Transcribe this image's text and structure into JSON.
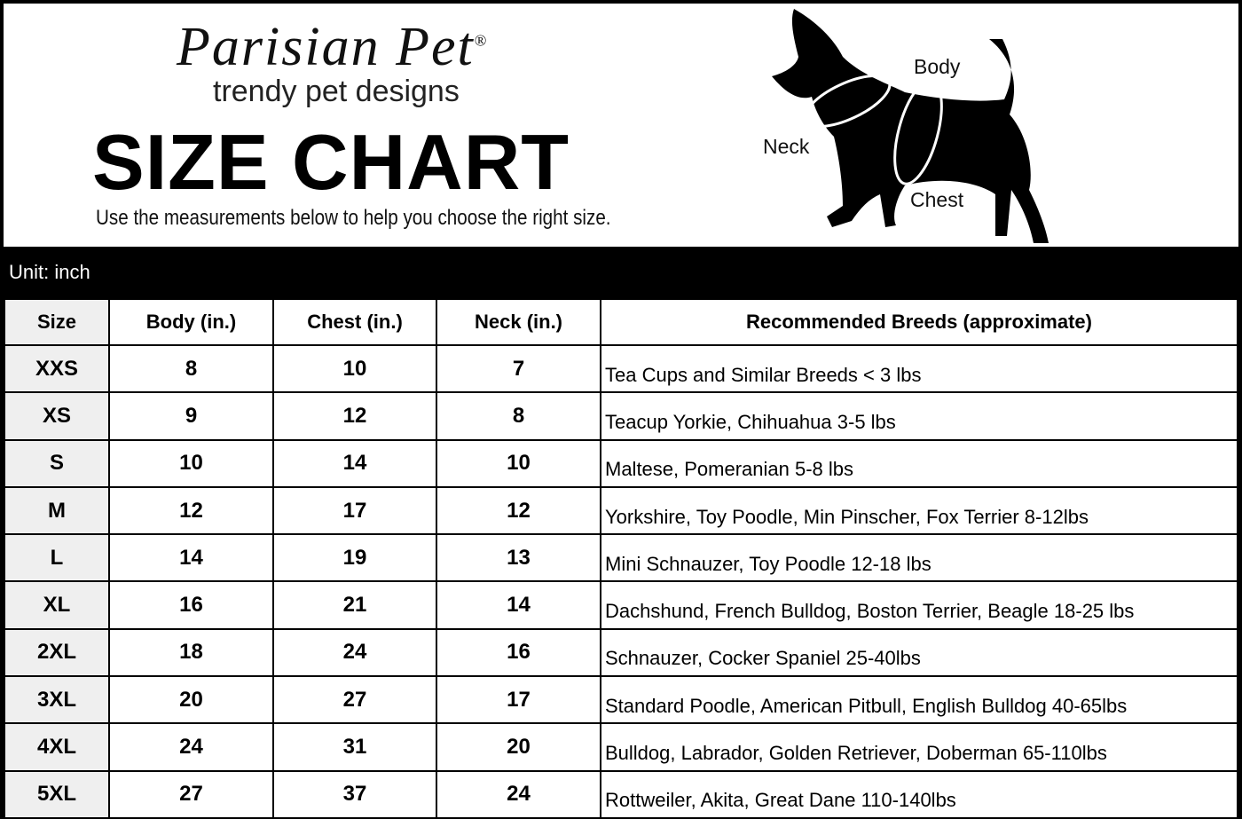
{
  "header": {
    "brand": "Parisian Pet",
    "registered": "®",
    "tagline": "trendy pet designs",
    "title": "SIZE CHART",
    "subtitle": "Use the measurements below to help you choose the right size."
  },
  "diagram": {
    "labels": {
      "body": "Body",
      "neck": "Neck",
      "chest": "Chest"
    },
    "icon": "dog-silhouette"
  },
  "unit": "Unit: inch",
  "table": {
    "headers": [
      "Size",
      "Body (in.)",
      "Chest (in.)",
      "Neck (in.)",
      "Recommended Breeds (approximate)"
    ],
    "rows": [
      [
        "XXS",
        "8",
        "10",
        "7",
        "Tea Cups and Similar Breeds < 3 lbs"
      ],
      [
        "XS",
        "9",
        "12",
        "8",
        "Teacup Yorkie, Chihuahua 3-5 lbs"
      ],
      [
        "S",
        "10",
        "14",
        "10",
        "Maltese, Pomeranian 5-8 lbs"
      ],
      [
        "M",
        "12",
        "17",
        "12",
        "Yorkshire, Toy Poodle, Min Pinscher, Fox Terrier 8-12lbs"
      ],
      [
        "L",
        "14",
        "19",
        "13",
        "Mini Schnauzer, Toy Poodle 12-18 lbs"
      ],
      [
        "XL",
        "16",
        "21",
        "14",
        "Dachshund, French Bulldog, Boston Terrier, Beagle 18-25 lbs"
      ],
      [
        "2XL",
        "18",
        "24",
        "16",
        "Schnauzer, Cocker Spaniel 25-40lbs"
      ],
      [
        "3XL",
        "20",
        "27",
        "17",
        "Standard Poodle, American Pitbull, English Bulldog 40-65lbs"
      ],
      [
        "4XL",
        "24",
        "31",
        "20",
        "Bulldog, Labrador, Golden Retriever, Doberman 65-110lbs"
      ],
      [
        "5XL",
        "27",
        "37",
        "24",
        "Rottweiler, Akita, Great Dane 110-140lbs"
      ]
    ]
  }
}
